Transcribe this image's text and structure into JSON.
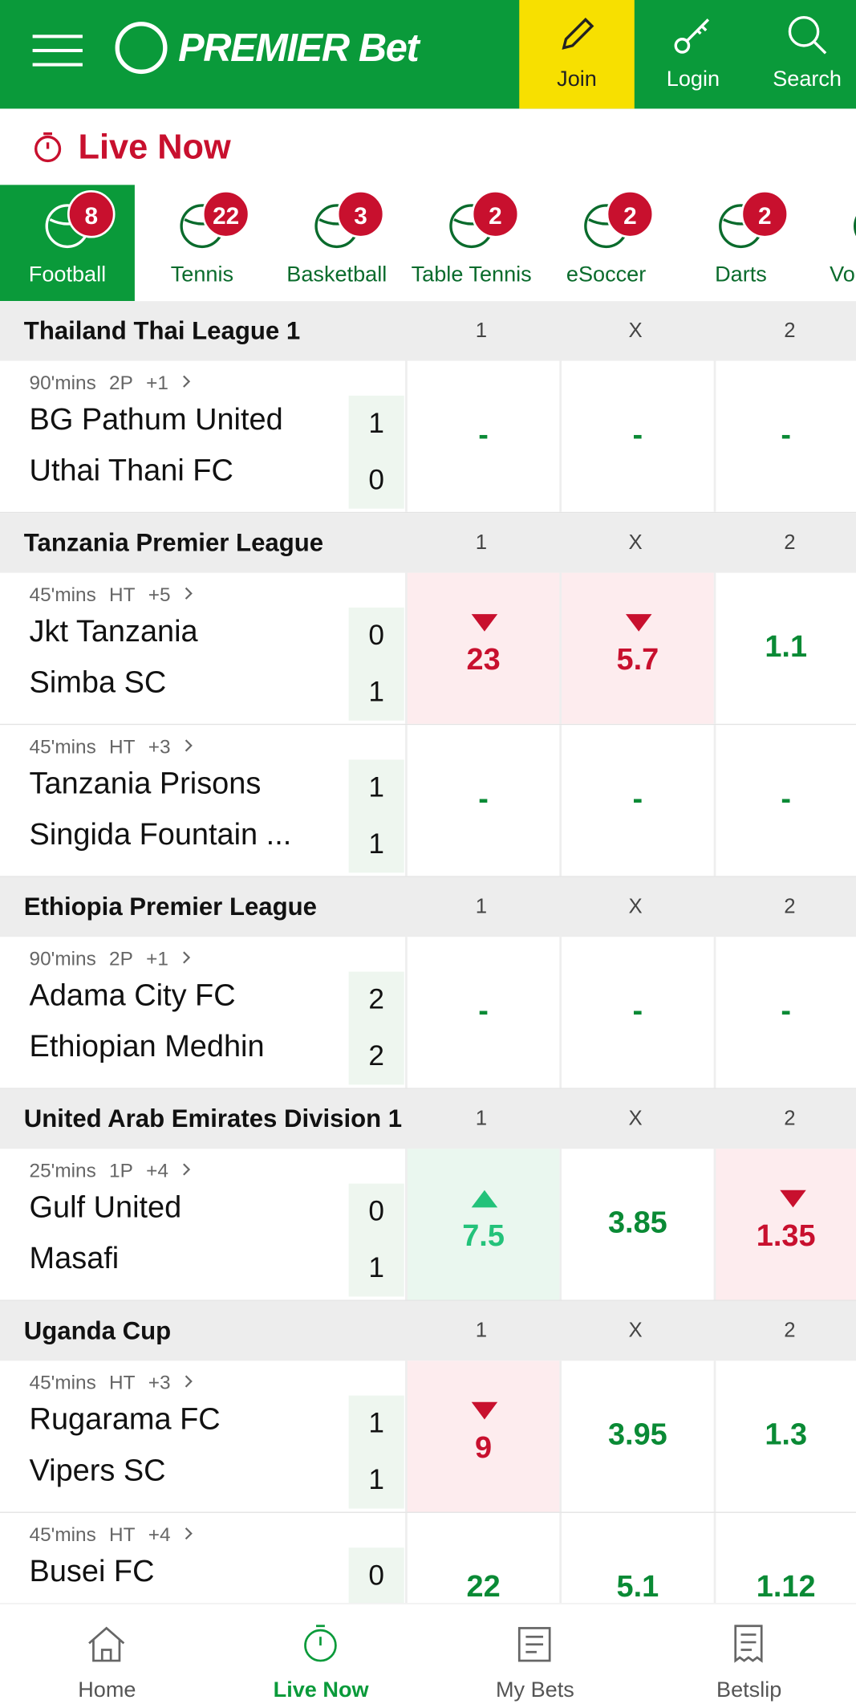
{
  "header": {
    "brand": "PREMIER Bet",
    "buttons": [
      "Join",
      "Login",
      "Search"
    ]
  },
  "section_title": "Live Now",
  "tabs": [
    {
      "name": "Football",
      "count": 8
    },
    {
      "name": "Tennis",
      "count": 22
    },
    {
      "name": "Basketball",
      "count": 3
    },
    {
      "name": "Table Tennis",
      "count": 2
    },
    {
      "name": "eSoccer",
      "count": 2
    },
    {
      "name": "Darts",
      "count": 2
    },
    {
      "name": "Volleyball"
    }
  ],
  "leagues": [
    {
      "name": "Thailand Thai League 1",
      "columns": [
        "1",
        "X",
        "2"
      ],
      "matches": [
        {
          "time": "90'mins",
          "period": "2P",
          "more": "+1",
          "teams": [
            "BG Pathum United",
            "Uthai Thani FC"
          ],
          "scores": [
            1,
            0
          ],
          "odds": [
            {
              "value": "-"
            },
            {
              "value": "-"
            },
            {
              "value": "-"
            }
          ]
        }
      ]
    },
    {
      "name": "Tanzania Premier League",
      "columns": [
        "1",
        "X",
        "2"
      ],
      "matches": [
        {
          "time": "45'mins",
          "period": "HT",
          "more": "+5",
          "teams": [
            "Jkt Tanzania",
            "Simba SC"
          ],
          "scores": [
            0,
            1
          ],
          "odds": [
            {
              "value": "23",
              "trend": "down"
            },
            {
              "value": "5.7",
              "trend": "down"
            },
            {
              "value": "1.1"
            }
          ]
        },
        {
          "time": "45'mins",
          "period": "HT",
          "more": "+3",
          "teams": [
            "Tanzania Prisons",
            "Singida Fountain ..."
          ],
          "scores": [
            1,
            1
          ],
          "odds": [
            {
              "value": "-"
            },
            {
              "value": "-"
            },
            {
              "value": "-"
            }
          ]
        }
      ]
    },
    {
      "name": "Ethiopia Premier League",
      "columns": [
        "1",
        "X",
        "2"
      ],
      "matches": [
        {
          "time": "90'mins",
          "period": "2P",
          "more": "+1",
          "teams": [
            "Adama City FC",
            "Ethiopian Medhin"
          ],
          "scores": [
            2,
            2
          ],
          "odds": [
            {
              "value": "-"
            },
            {
              "value": "-"
            },
            {
              "value": "-"
            }
          ]
        }
      ]
    },
    {
      "name": "United Arab Emirates Division 1",
      "columns": [
        "1",
        "X",
        "2"
      ],
      "matches": [
        {
          "time": "25'mins",
          "period": "1P",
          "more": "+4",
          "teams": [
            "Gulf United",
            "Masafi"
          ],
          "scores": [
            0,
            1
          ],
          "odds": [
            {
              "value": "7.5",
              "trend": "up"
            },
            {
              "value": "3.85"
            },
            {
              "value": "1.35",
              "trend": "down"
            }
          ]
        }
      ]
    },
    {
      "name": "Uganda Cup",
      "columns": [
        "1",
        "X",
        "2"
      ],
      "matches": [
        {
          "time": "45'mins",
          "period": "HT",
          "more": "+3",
          "teams": [
            "Rugarama FC",
            "Vipers SC"
          ],
          "scores": [
            1,
            1
          ],
          "odds": [
            {
              "value": "9",
              "trend": "down"
            },
            {
              "value": "3.95"
            },
            {
              "value": "1.3"
            }
          ]
        },
        {
          "time": "45'mins",
          "period": "HT",
          "more": "+4",
          "teams": [
            "Busei FC"
          ],
          "scores": [
            0
          ],
          "odds": [
            {
              "value": "22"
            },
            {
              "value": "5.1"
            },
            {
              "value": "1.12"
            }
          ]
        }
      ]
    }
  ],
  "bottom_nav": [
    "Home",
    "Live Now",
    "My Bets",
    "Betslip"
  ]
}
